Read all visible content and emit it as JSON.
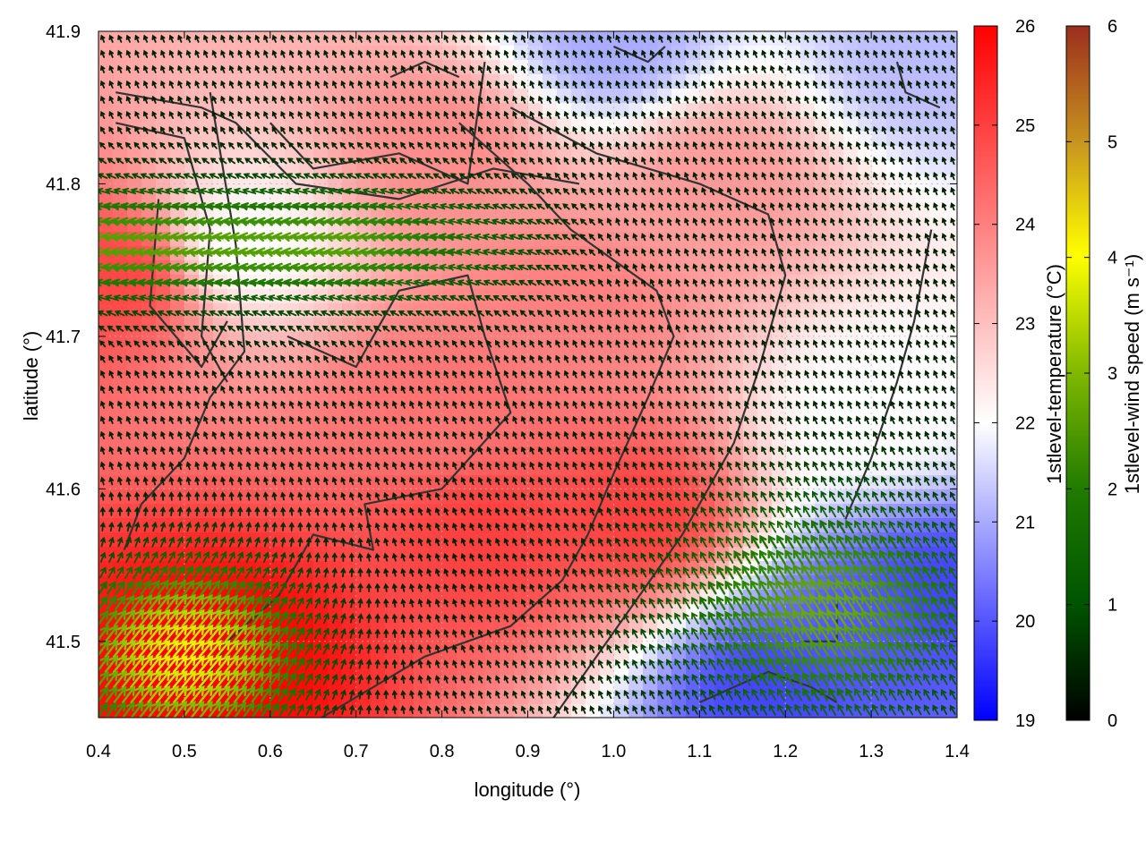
{
  "chart_data": {
    "type": "heatmap",
    "title": "",
    "xlabel": "longitude (°)",
    "ylabel": "latitude (°)",
    "xlim": [
      0.4,
      1.4
    ],
    "ylim": [
      41.45,
      41.9
    ],
    "x_ticks": [
      0.4,
      0.5,
      0.6,
      0.7,
      0.8,
      0.9,
      1.0,
      1.1,
      1.2,
      1.3,
      1.4
    ],
    "x_tick_labels": [
      "0.4",
      "0.5",
      "0.6",
      "0.7",
      "0.8",
      "0.9",
      "1.0",
      "1.1",
      "1.2",
      "1.3",
      "1.4"
    ],
    "y_ticks": [
      41.5,
      41.6,
      41.7,
      41.8,
      41.9
    ],
    "y_tick_labels": [
      "41.5",
      "41.6",
      "41.7",
      "41.8",
      "41.9"
    ],
    "grid": true,
    "temperature": {
      "label": "1stlevel-temperature (°C)",
      "range": [
        19,
        26
      ],
      "ticks": [
        19,
        20,
        21,
        22,
        23,
        24,
        25,
        26
      ],
      "tick_labels": [
        "19",
        "20",
        "21",
        "22",
        "23",
        "24",
        "25",
        "26"
      ],
      "colors": [
        "#0000ff",
        "#ffffff",
        "#ff0000"
      ],
      "hotspots": [
        {
          "lon": 0.55,
          "lat": 41.49,
          "value": 26.0
        },
        {
          "lon": 0.42,
          "lat": 41.74,
          "value": 24.9
        },
        {
          "lon": 0.85,
          "lat": 41.57,
          "value": 25.0
        },
        {
          "lon": 1.03,
          "lat": 41.58,
          "value": 25.0
        },
        {
          "lon": 0.8,
          "lat": 41.65,
          "value": 24.2
        },
        {
          "lon": 0.95,
          "lat": 41.72,
          "value": 24.0
        },
        {
          "lon": 0.8,
          "lat": 41.82,
          "value": 23.8
        },
        {
          "lon": 1.12,
          "lat": 41.8,
          "value": 23.6
        },
        {
          "lon": 1.3,
          "lat": 41.51,
          "value": 20.0
        },
        {
          "lon": 1.38,
          "lat": 41.53,
          "value": 19.8
        },
        {
          "lon": 1.18,
          "lat": 41.47,
          "value": 19.8
        },
        {
          "lon": 1.0,
          "lat": 41.89,
          "value": 21.0
        },
        {
          "lon": 1.36,
          "lat": 41.88,
          "value": 21.2
        },
        {
          "lon": 0.57,
          "lat": 41.76,
          "value": 22.0
        },
        {
          "lon": 1.3,
          "lat": 41.65,
          "value": 22.0
        }
      ]
    },
    "wind": {
      "label": "1stlevel-wind speed (m s⁻¹)",
      "range": [
        0,
        6
      ],
      "ticks": [
        0,
        1,
        2,
        3,
        4,
        5,
        6
      ],
      "tick_labels": [
        "0",
        "1",
        "2",
        "3",
        "4",
        "5",
        "6"
      ],
      "colors": [
        "#000000",
        "#005500",
        "#2e8b00",
        "#99cc00",
        "#ffff00",
        "#c8961e",
        "#9b2d1e"
      ],
      "grid_spacing_deg": 0.01
    },
    "contours": [
      [
        [
          0.42,
          41.86
        ],
        [
          0.52,
          41.85
        ],
        [
          0.56,
          41.84
        ],
        [
          0.63,
          41.8
        ],
        [
          0.75,
          41.79
        ],
        [
          0.86,
          41.81
        ],
        [
          0.96,
          41.8
        ]
      ],
      [
        [
          0.42,
          41.84
        ],
        [
          0.5,
          41.83
        ],
        [
          0.53,
          41.77
        ],
        [
          0.52,
          41.7
        ],
        [
          0.55,
          41.67
        ]
      ],
      [
        [
          0.47,
          41.79
        ],
        [
          0.46,
          41.72
        ],
        [
          0.52,
          41.68
        ],
        [
          0.55,
          41.71
        ]
      ],
      [
        [
          0.53,
          41.86
        ],
        [
          0.56,
          41.76
        ],
        [
          0.57,
          41.69
        ],
        [
          0.53,
          41.66
        ],
        [
          0.5,
          41.62
        ],
        [
          0.45,
          41.59
        ],
        [
          0.43,
          41.56
        ]
      ],
      [
        [
          0.6,
          41.84
        ],
        [
          0.65,
          41.81
        ],
        [
          0.75,
          41.82
        ],
        [
          0.83,
          41.8
        ],
        [
          0.85,
          41.88
        ]
      ],
      [
        [
          0.62,
          41.7
        ],
        [
          0.7,
          41.68
        ],
        [
          0.75,
          41.73
        ],
        [
          0.83,
          41.74
        ],
        [
          0.85,
          41.7
        ],
        [
          0.88,
          41.65
        ],
        [
          0.8,
          41.6
        ],
        [
          0.71,
          41.59
        ],
        [
          0.72,
          41.56
        ],
        [
          0.65,
          41.57
        ],
        [
          0.61,
          41.53
        ],
        [
          0.55,
          41.5
        ],
        [
          0.52,
          41.47
        ]
      ],
      [
        [
          0.82,
          41.84
        ],
        [
          0.9,
          41.8
        ],
        [
          0.95,
          41.77
        ],
        [
          1.05,
          41.73
        ],
        [
          1.07,
          41.7
        ],
        [
          1.04,
          41.66
        ],
        [
          1.0,
          41.61
        ],
        [
          0.97,
          41.57
        ],
        [
          0.94,
          41.54
        ],
        [
          0.88,
          41.51
        ],
        [
          0.78,
          41.49
        ],
        [
          0.72,
          41.47
        ],
        [
          0.66,
          41.45
        ]
      ],
      [
        [
          0.88,
          41.85
        ],
        [
          0.98,
          41.82
        ],
        [
          1.1,
          41.8
        ],
        [
          1.18,
          41.78
        ],
        [
          1.2,
          41.74
        ],
        [
          1.17,
          41.68
        ],
        [
          1.14,
          41.63
        ],
        [
          1.08,
          41.57
        ],
        [
          1.03,
          41.53
        ],
        [
          0.98,
          41.49
        ],
        [
          0.93,
          41.45
        ]
      ],
      [
        [
          1.27,
          41.58
        ],
        [
          1.3,
          41.62
        ],
        [
          1.33,
          41.67
        ],
        [
          1.35,
          41.71
        ],
        [
          1.37,
          41.77
        ]
      ],
      [
        [
          1.22,
          41.5
        ],
        [
          1.26,
          41.5
        ],
        [
          1.26,
          41.53
        ]
      ],
      [
        [
          1.1,
          41.46
        ],
        [
          1.18,
          41.48
        ],
        [
          1.23,
          41.47
        ],
        [
          1.26,
          41.46
        ]
      ],
      [
        [
          1.0,
          41.89
        ],
        [
          1.04,
          41.88
        ],
        [
          1.06,
          41.89
        ]
      ],
      [
        [
          1.33,
          41.88
        ],
        [
          1.34,
          41.86
        ],
        [
          1.38,
          41.85
        ]
      ],
      [
        [
          0.74,
          41.87
        ],
        [
          0.78,
          41.88
        ],
        [
          0.82,
          41.87
        ]
      ]
    ]
  }
}
